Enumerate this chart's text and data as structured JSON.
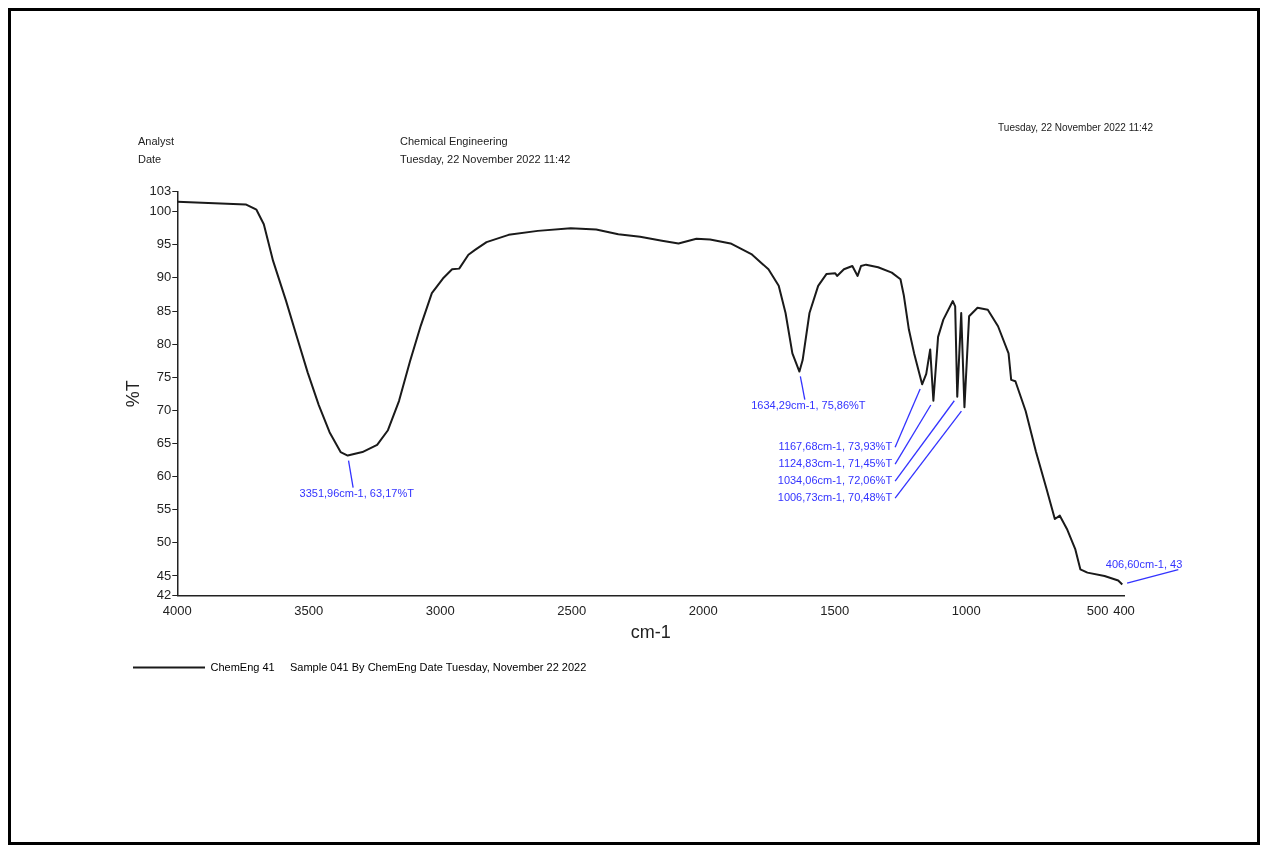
{
  "chart_data": {
    "type": "line",
    "xlabel": "cm-1",
    "ylabel": "%T",
    "xlim": [
      4000,
      400
    ],
    "xticks": [
      4000,
      3500,
      3000,
      2500,
      2000,
      1500,
      1000,
      500,
      400
    ],
    "ylim": [
      42,
      103
    ],
    "yticks": [
      42,
      45,
      50,
      55,
      60,
      65,
      70,
      75,
      80,
      85,
      90,
      95,
      100,
      103
    ],
    "grid": false,
    "legend": "bottom left",
    "marker": "none",
    "line_style": "solid",
    "series": [
      {
        "name": "ChemEng 41     Sample 041 By ChemEng Date Tuesday, November 22 2022",
        "color": "#1a1a1a",
        "x": [
          4000,
          3740,
          3699,
          3671,
          3636,
          3587,
          3546,
          3504,
          3462,
          3421,
          3379,
          3351.96,
          3296,
          3240,
          3199,
          3157,
          3115,
          3074,
          3032,
          2990,
          2955,
          2928,
          2893,
          2865,
          2824,
          2740,
          2629,
          2504,
          2407,
          2323,
          2240,
          2157,
          2094,
          2026,
          1974,
          1896,
          1817,
          1752,
          1713,
          1687,
          1661,
          1634.29,
          1622,
          1596,
          1563,
          1531,
          1498,
          1491,
          1465,
          1433,
          1413,
          1400,
          1381,
          1335,
          1283,
          1250,
          1237,
          1218,
          1198,
          1167.68,
          1152,
          1137,
          1124.83,
          1107,
          1087,
          1051,
          1042,
          1034.06,
          1019,
          1006.73,
          989,
          957,
          918,
          879,
          839,
          829,
          813,
          774,
          735,
          695,
          663,
          644,
          617,
          585,
          566,
          539,
          474,
          422,
          406.6
        ],
        "values": [
          101.5,
          101.1,
          100.3,
          98.1,
          92.6,
          86.6,
          81.2,
          75.7,
          70.8,
          66.7,
          63.7,
          63.17,
          63.7,
          64.8,
          67.0,
          71.4,
          77.4,
          82.8,
          87.7,
          89.9,
          91.3,
          91.4,
          93.5,
          94.3,
          95.4,
          96.5,
          97.1,
          97.5,
          97.3,
          96.6,
          96.2,
          95.6,
          95.2,
          95.9,
          95.8,
          95.2,
          93.6,
          91.3,
          88.8,
          84.7,
          78.6,
          75.86,
          77.6,
          84.7,
          88.8,
          90.6,
          90.7,
          90.3,
          91.3,
          91.8,
          90.3,
          91.8,
          92.0,
          91.6,
          90.8,
          89.8,
          87.3,
          82.2,
          78.6,
          73.93,
          75.5,
          79.2,
          71.45,
          81.1,
          83.7,
          86.5,
          85.7,
          72.06,
          84.7,
          70.48,
          84.2,
          85.5,
          85.2,
          82.7,
          78.6,
          74.6,
          74.4,
          69.9,
          63.8,
          58.2,
          53.6,
          54.1,
          52.1,
          49.0,
          46.0,
          45.5,
          45.0,
          44.3,
          43.7
        ]
      }
    ],
    "annotations": [
      "Analyst",
      "Date",
      "Chemical Engineering",
      "Tuesday, 22 November 2022 11:42",
      "Tuesday, 22 November 2022 11:42",
      {
        "text": "3351,96cm-1, 63,17%T",
        "x": 3351.96,
        "y": 63.17
      },
      {
        "text": "1634,29cm-1, 75,86%T",
        "x": 1634.29,
        "y": 75.86
      },
      {
        "text": "1034,06cm-1, 72,06%T",
        "x": 1034.06,
        "y": 72.06
      },
      {
        "text": "1006,73cm-1, 70,48%T",
        "x": 1006.73,
        "y": 70.48
      },
      {
        "text": "1124,83cm-1, 71,45%T",
        "x": 1124.83,
        "y": 71.45
      },
      {
        "text": "1167,68cm-1, 73,93%T",
        "x": 1167.68,
        "y": 73.93
      },
      {
        "text": "406,60cm-1, 43",
        "x": 406.6,
        "y": 43.7
      }
    ]
  }
}
